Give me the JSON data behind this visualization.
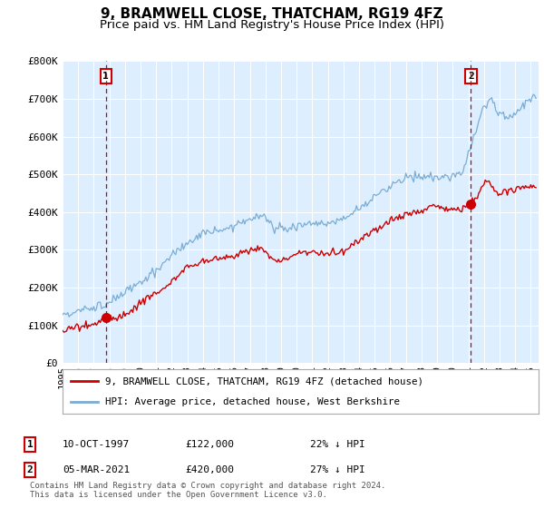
{
  "title": "9, BRAMWELL CLOSE, THATCHAM, RG19 4FZ",
  "subtitle": "Price paid vs. HM Land Registry's House Price Index (HPI)",
  "ylim": [
    0,
    800000
  ],
  "yticks": [
    0,
    100000,
    200000,
    300000,
    400000,
    500000,
    600000,
    700000,
    800000
  ],
  "ytick_labels": [
    "£0",
    "£100K",
    "£200K",
    "£300K",
    "£400K",
    "£500K",
    "£600K",
    "£700K",
    "£800K"
  ],
  "hpi_color": "#7aadd4",
  "price_color": "#cc0000",
  "vline_color": "#cc0000",
  "chart_bg": "#ddeeff",
  "background_color": "#ffffff",
  "grid_color": "#ffffff",
  "purchase1": {
    "date_x": 1997.78,
    "price": 122000,
    "label": "1",
    "pct": "22% ↓ HPI",
    "date_str": "10-OCT-1997",
    "price_str": "£122,000"
  },
  "purchase2": {
    "date_x": 2021.17,
    "price": 420000,
    "label": "2",
    "pct": "27% ↓ HPI",
    "date_str": "05-MAR-2021",
    "price_str": "£420,000"
  },
  "legend_label_price": "9, BRAMWELL CLOSE, THATCHAM, RG19 4FZ (detached house)",
  "legend_label_hpi": "HPI: Average price, detached house, West Berkshire",
  "footnote": "Contains HM Land Registry data © Crown copyright and database right 2024.\nThis data is licensed under the Open Government Licence v3.0.",
  "title_fontsize": 11,
  "subtitle_fontsize": 9.5,
  "tick_fontsize": 8,
  "xmin": 1995,
  "xmax": 2025.5
}
